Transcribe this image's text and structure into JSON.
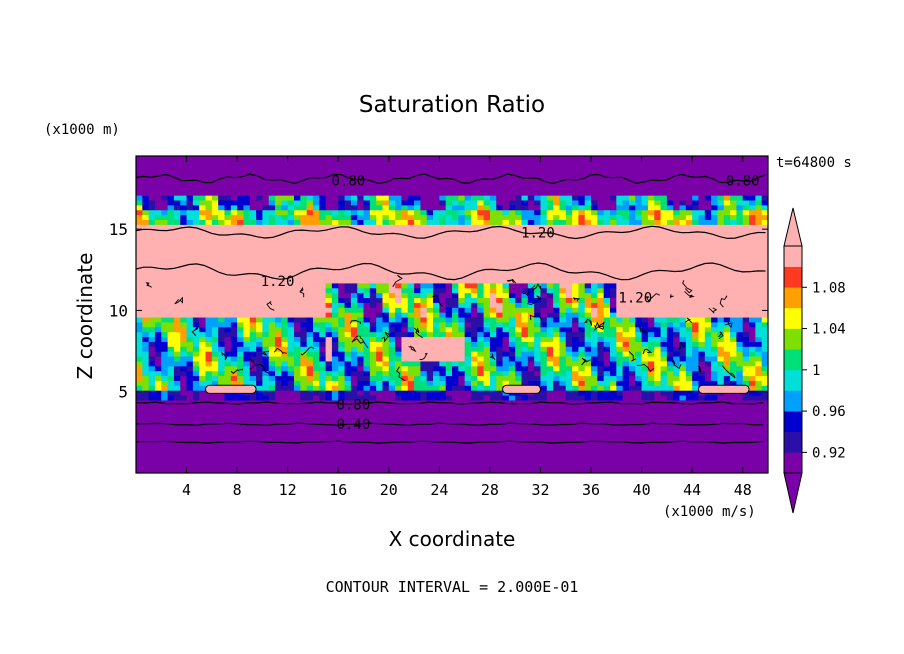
{
  "chart_data": {
    "type": "heatmap",
    "title": "Saturation Ratio",
    "xlabel": "X coordinate",
    "ylabel": "Z coordinate",
    "x_unit": "(x1000 m/s)",
    "y_unit": "(x1000 m)",
    "time_label": "t=64800 s",
    "footer": "CONTOUR INTERVAL = 2.000E-01",
    "xlim": [
      0,
      50
    ],
    "ylim": [
      0,
      19.5
    ],
    "x_ticks": [
      "4",
      "8",
      "12",
      "16",
      "20",
      "24",
      "28",
      "32",
      "36",
      "40",
      "44",
      "48"
    ],
    "x_tick_values": [
      4,
      8,
      12,
      16,
      20,
      24,
      28,
      32,
      36,
      40,
      44,
      48
    ],
    "y_ticks": [
      "5",
      "10",
      "15"
    ],
    "y_tick_values": [
      5,
      10,
      15
    ],
    "colorbar": {
      "labels": [
        "1.08",
        "1.04",
        "1",
        "0.96",
        "0.92"
      ],
      "label_values": [
        1.08,
        1.04,
        1.0,
        0.96,
        0.92
      ],
      "levels": [
        0.9,
        0.92,
        0.94,
        0.96,
        0.98,
        1.0,
        1.02,
        1.04,
        1.06,
        1.08,
        1.1
      ],
      "colors": [
        "#7a00a8",
        "#2a10a8",
        "#0000d0",
        "#00a0ff",
        "#00e0d8",
        "#00e078",
        "#7ee000",
        "#ffff00",
        "#ffa000",
        "#ff3a20",
        "#ffb0b0"
      ],
      "under_color": "#7a00a8",
      "over_color": "#ffb0b0"
    },
    "contour_labels": [
      {
        "text": "0.80",
        "x": 16.8,
        "z": 18.0
      },
      {
        "text": "0.80",
        "x": 48.0,
        "z": 18.0
      },
      {
        "text": "1.20",
        "x": 31.8,
        "z": 14.8
      },
      {
        "text": "1.20",
        "x": 11.2,
        "z": 11.8
      },
      {
        "text": "1.20",
        "x": 39.5,
        "z": 10.8
      },
      {
        "text": "0.80",
        "x": 17.2,
        "z": 4.2
      },
      {
        "text": "0.40",
        "x": 17.2,
        "z": 3.0
      }
    ],
    "fields": {
      "lower_stable_layer_z": [
        0,
        4.5
      ],
      "moist_layer_z": [
        4.5,
        9.5
      ],
      "supersaturated_layer_z": [
        9.5,
        15.5
      ],
      "cirrus_top_z": [
        15.5,
        17.0
      ],
      "upper_dry_layer_z": [
        17.0,
        19.5
      ]
    }
  }
}
